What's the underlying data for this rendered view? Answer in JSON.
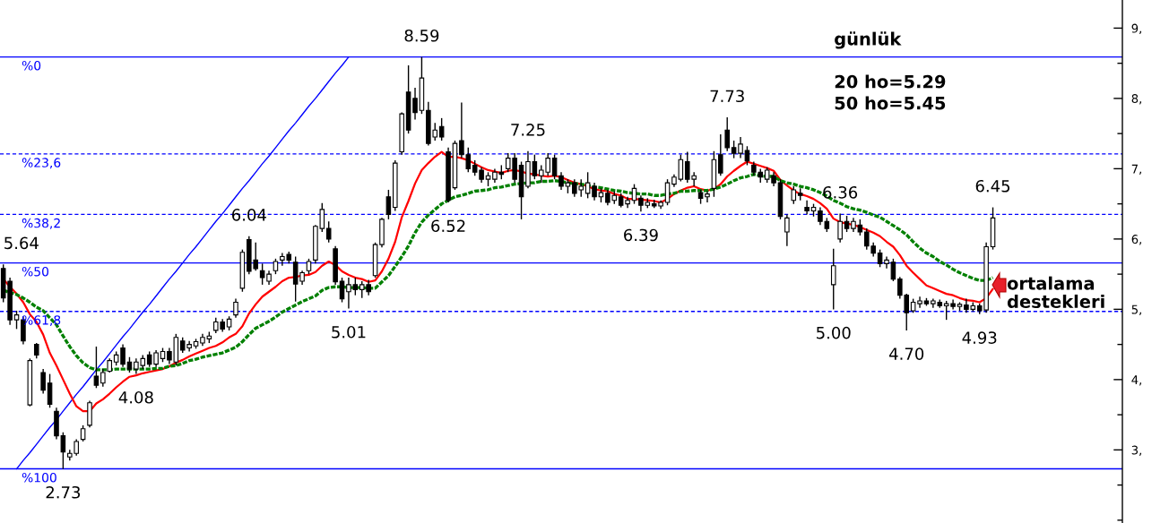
{
  "chart_data": {
    "type": "candlestick",
    "title": "günlük",
    "color": "#000000",
    "categories": [
      null,
      null,
      null,
      null,
      null,
      null,
      null,
      null,
      null,
      null,
      null,
      null,
      null,
      null,
      null,
      null,
      null,
      null,
      null,
      null,
      null,
      null,
      null,
      null,
      null,
      null,
      null,
      null,
      null,
      null,
      null,
      null,
      null,
      null,
      null,
      null,
      null,
      null,
      null,
      null,
      null,
      null,
      null,
      null,
      null,
      null,
      null,
      null,
      null,
      null,
      null,
      null,
      null,
      null,
      null,
      null,
      null,
      null,
      null,
      null,
      null,
      null,
      null,
      null,
      null,
      null,
      null,
      null,
      null,
      null,
      null,
      null,
      null,
      null,
      null,
      null,
      null,
      null,
      null,
      null,
      null,
      null,
      null,
      null,
      null,
      null,
      null,
      null,
      null,
      null,
      null,
      null,
      null,
      null,
      null,
      null,
      null,
      null,
      null,
      null,
      null,
      null,
      null,
      null,
      null,
      null,
      null,
      null,
      null,
      null,
      null,
      null,
      null,
      null,
      null,
      null,
      null,
      null,
      null,
      null,
      null,
      null,
      null,
      null,
      null,
      null,
      null,
      null,
      null,
      null,
      null,
      null,
      null,
      null,
      null,
      null,
      null,
      null,
      null,
      null,
      null,
      null,
      null,
      null,
      null,
      null,
      null,
      null,
      null,
      null,
      null,
      null,
      null,
      null,
      null,
      null,
      null,
      null,
      null,
      null,
      null,
      null,
      null,
      null,
      null,
      null,
      null,
      null,
      null
    ],
    "ohlc": [
      [
        5.58,
        5.64,
        5.1,
        5.16
      ],
      [
        5.4,
        5.45,
        4.78,
        4.85
      ],
      [
        4.85,
        4.98,
        4.72,
        4.92
      ],
      [
        4.85,
        4.9,
        4.5,
        4.55
      ],
      [
        3.64,
        4.3,
        3.62,
        4.27
      ],
      [
        4.5,
        4.52,
        4.3,
        4.35
      ],
      [
        4.1,
        4.15,
        3.8,
        3.85
      ],
      [
        3.95,
        4.08,
        3.6,
        3.65
      ],
      [
        3.55,
        3.6,
        3.15,
        3.2
      ],
      [
        3.2,
        3.25,
        2.73,
        2.97
      ],
      [
        2.9,
        3.0,
        2.85,
        2.95
      ],
      [
        2.95,
        3.15,
        2.92,
        3.12
      ],
      [
        3.15,
        3.35,
        3.12,
        3.3
      ],
      [
        3.35,
        3.7,
        3.32,
        3.67
      ],
      [
        4.05,
        4.47,
        3.88,
        3.92
      ],
      [
        3.95,
        4.15,
        3.9,
        4.1
      ],
      [
        4.12,
        4.3,
        4.1,
        4.27
      ],
      [
        4.25,
        4.4,
        4.2,
        4.35
      ],
      [
        4.45,
        4.5,
        4.18,
        4.22
      ],
      [
        4.25,
        4.32,
        4.1,
        4.15
      ],
      [
        4.15,
        4.3,
        4.08,
        4.25
      ],
      [
        4.2,
        4.35,
        4.15,
        4.3
      ],
      [
        4.35,
        4.4,
        4.18,
        4.22
      ],
      [
        4.22,
        4.42,
        4.18,
        4.38
      ],
      [
        4.3,
        4.45,
        4.25,
        4.4
      ],
      [
        4.4,
        4.45,
        4.22,
        4.28
      ],
      [
        4.25,
        4.65,
        4.2,
        4.6
      ],
      [
        4.55,
        4.6,
        4.38,
        4.42
      ],
      [
        4.45,
        4.55,
        4.4,
        4.5
      ],
      [
        4.48,
        4.58,
        4.44,
        4.54
      ],
      [
        4.52,
        4.65,
        4.48,
        4.6
      ],
      [
        4.58,
        4.68,
        4.52,
        4.62
      ],
      [
        4.7,
        4.88,
        4.66,
        4.82
      ],
      [
        4.82,
        4.86,
        4.68,
        4.72
      ],
      [
        4.75,
        4.9,
        4.7,
        4.86
      ],
      [
        4.92,
        5.15,
        4.88,
        5.1
      ],
      [
        5.3,
        5.85,
        5.25,
        5.81
      ],
      [
        5.99,
        6.04,
        5.5,
        5.54
      ],
      [
        5.7,
        5.95,
        5.55,
        5.58
      ],
      [
        5.55,
        5.65,
        5.35,
        5.45
      ],
      [
        5.4,
        5.55,
        5.35,
        5.5
      ],
      [
        5.55,
        5.72,
        5.5,
        5.68
      ],
      [
        5.7,
        5.8,
        5.62,
        5.75
      ],
      [
        5.78,
        5.82,
        5.65,
        5.7
      ],
      [
        5.67,
        5.75,
        5.11,
        5.36
      ],
      [
        5.4,
        5.55,
        5.35,
        5.52
      ],
      [
        5.55,
        5.72,
        5.5,
        5.68
      ],
      [
        5.7,
        6.2,
        5.65,
        6.18
      ],
      [
        6.15,
        6.51,
        6.1,
        6.42
      ],
      [
        6.15,
        6.25,
        5.95,
        6.0
      ],
      [
        5.86,
        5.9,
        5.35,
        5.39
      ],
      [
        5.4,
        5.45,
        5.1,
        5.15
      ],
      [
        5.25,
        5.45,
        5.01,
        5.35
      ],
      [
        5.35,
        5.45,
        5.2,
        5.28
      ],
      [
        5.28,
        5.4,
        5.16,
        5.35
      ],
      [
        5.35,
        5.42,
        5.2,
        5.25
      ],
      [
        5.48,
        5.95,
        5.45,
        5.92
      ],
      [
        5.92,
        6.3,
        5.88,
        6.28
      ],
      [
        6.6,
        6.7,
        6.28,
        6.35
      ],
      [
        6.45,
        7.12,
        6.4,
        7.08
      ],
      [
        7.24,
        7.8,
        7.2,
        7.78
      ],
      [
        8.09,
        8.47,
        7.5,
        7.55
      ],
      [
        8.0,
        8.15,
        7.7,
        7.8
      ],
      [
        7.83,
        8.59,
        7.78,
        8.29
      ],
      [
        7.83,
        7.95,
        7.33,
        7.36
      ],
      [
        7.45,
        7.65,
        7.4,
        7.55
      ],
      [
        7.6,
        7.72,
        7.4,
        7.45
      ],
      [
        7.24,
        7.3,
        6.52,
        6.55
      ],
      [
        6.73,
        7.4,
        6.7,
        7.36
      ],
      [
        7.4,
        7.94,
        7.15,
        7.2
      ],
      [
        7.2,
        7.3,
        6.95,
        7.0
      ],
      [
        7.05,
        7.12,
        6.9,
        6.95
      ],
      [
        6.98,
        7.02,
        6.8,
        6.85
      ],
      [
        6.85,
        6.95,
        6.75,
        6.9
      ],
      [
        6.85,
        7.0,
        6.8,
        6.95
      ],
      [
        6.95,
        7.05,
        6.85,
        6.92
      ],
      [
        7.0,
        7.22,
        6.95,
        7.15
      ],
      [
        7.15,
        7.22,
        6.8,
        6.85
      ],
      [
        7.05,
        7.1,
        6.28,
        6.6
      ],
      [
        6.75,
        7.25,
        6.72,
        7.1
      ],
      [
        7.1,
        7.2,
        6.85,
        6.9
      ],
      [
        6.9,
        7.05,
        6.8,
        6.98
      ],
      [
        6.95,
        7.22,
        6.9,
        7.15
      ],
      [
        7.15,
        7.2,
        6.85,
        6.9
      ],
      [
        6.9,
        6.95,
        6.7,
        6.75
      ],
      [
        6.75,
        6.85,
        6.65,
        6.8
      ],
      [
        6.8,
        6.85,
        6.6,
        6.65
      ],
      [
        6.7,
        6.85,
        6.6,
        6.75
      ],
      [
        6.65,
        6.95,
        6.58,
        6.8
      ],
      [
        6.75,
        6.8,
        6.55,
        6.6
      ],
      [
        6.6,
        6.72,
        6.52,
        6.66
      ],
      [
        6.65,
        6.7,
        6.48,
        6.52
      ],
      [
        6.55,
        6.68,
        6.5,
        6.62
      ],
      [
        6.6,
        6.65,
        6.45,
        6.48
      ],
      [
        6.5,
        6.6,
        6.44,
        6.55
      ],
      [
        6.55,
        6.78,
        6.5,
        6.72
      ],
      [
        6.58,
        6.62,
        6.39,
        6.48
      ],
      [
        6.48,
        6.58,
        6.44,
        6.52
      ],
      [
        6.5,
        6.56,
        6.44,
        6.47
      ],
      [
        6.47,
        6.55,
        6.43,
        6.52
      ],
      [
        6.52,
        6.85,
        6.48,
        6.8
      ],
      [
        6.78,
        6.92,
        6.74,
        6.88
      ],
      [
        6.85,
        7.2,
        6.82,
        7.13
      ],
      [
        7.1,
        7.24,
        6.8,
        6.85
      ],
      [
        6.85,
        6.95,
        6.75,
        6.9
      ],
      [
        6.66,
        6.7,
        6.5,
        6.58
      ],
      [
        6.6,
        6.68,
        6.52,
        6.64
      ],
      [
        6.72,
        7.25,
        6.6,
        7.13
      ],
      [
        7.2,
        7.49,
        6.9,
        6.94
      ],
      [
        7.55,
        7.73,
        7.25,
        7.3
      ],
      [
        7.3,
        7.4,
        7.15,
        7.22
      ],
      [
        7.22,
        7.45,
        7.15,
        7.35
      ],
      [
        7.26,
        7.32,
        7.05,
        7.11
      ],
      [
        7.05,
        7.1,
        6.9,
        6.95
      ],
      [
        6.95,
        7.0,
        6.8,
        6.88
      ],
      [
        6.85,
        7.02,
        6.8,
        6.98
      ],
      [
        6.9,
        6.95,
        6.75,
        6.8
      ],
      [
        6.8,
        6.85,
        6.28,
        6.32
      ],
      [
        6.1,
        6.35,
        5.9,
        6.3
      ],
      [
        6.55,
        6.75,
        6.5,
        6.7
      ],
      [
        6.65,
        6.72,
        6.55,
        6.62
      ],
      [
        6.45,
        6.55,
        6.35,
        6.4
      ],
      [
        6.4,
        6.5,
        6.32,
        6.45
      ],
      [
        6.4,
        6.45,
        6.2,
        6.25
      ],
      [
        6.25,
        6.3,
        6.1,
        6.15
      ],
      [
        5.35,
        5.86,
        5.0,
        5.62
      ],
      [
        6.0,
        6.36,
        5.95,
        6.25
      ],
      [
        6.25,
        6.33,
        6.1,
        6.15
      ],
      [
        6.15,
        6.3,
        6.1,
        6.25
      ],
      [
        6.2,
        6.28,
        6.05,
        6.1
      ],
      [
        6.1,
        6.15,
        5.85,
        5.9
      ],
      [
        5.9,
        5.95,
        5.75,
        5.8
      ],
      [
        5.8,
        5.85,
        5.6,
        5.65
      ],
      [
        5.65,
        5.75,
        5.58,
        5.7
      ],
      [
        5.67,
        5.72,
        5.4,
        5.43
      ],
      [
        5.43,
        5.46,
        5.15,
        5.2
      ],
      [
        5.2,
        5.22,
        4.7,
        4.95
      ],
      [
        4.98,
        5.15,
        4.95,
        5.1
      ],
      [
        5.08,
        5.18,
        5.02,
        5.12
      ],
      [
        5.12,
        5.16,
        5.05,
        5.08
      ],
      [
        5.08,
        5.15,
        5.02,
        5.12
      ],
      [
        5.1,
        5.14,
        5.02,
        5.05
      ],
      [
        5.05,
        5.12,
        4.85,
        5.08
      ],
      [
        5.08,
        5.14,
        5.0,
        5.04
      ],
      [
        5.04,
        5.1,
        4.98,
        5.07
      ],
      [
        5.06,
        5.15,
        4.95,
        5.0
      ],
      [
        5.0,
        5.1,
        4.97,
        5.05
      ],
      [
        5.05,
        5.08,
        4.93,
        4.98
      ],
      [
        4.99,
        5.95,
        4.95,
        5.89
      ],
      [
        5.89,
        6.45,
        5.85,
        6.3
      ],
      null,
      null,
      null,
      null,
      null,
      null,
      null,
      null,
      null,
      null,
      null,
      null,
      null,
      null,
      null,
      null,
      null,
      null,
      null
    ],
    "value_labels": [
      "5.64",
      null,
      null,
      null,
      null,
      null,
      null,
      null,
      null,
      "2.73",
      null,
      null,
      null,
      null,
      null,
      null,
      null,
      null,
      null,
      null,
      "4.08",
      null,
      null,
      null,
      null,
      null,
      null,
      null,
      null,
      null,
      null,
      null,
      null,
      null,
      null,
      null,
      null,
      "6.04",
      null,
      null,
      null,
      null,
      null,
      null,
      null,
      null,
      null,
      null,
      null,
      null,
      null,
      null,
      "5.01",
      null,
      null,
      null,
      null,
      null,
      null,
      null,
      null,
      null,
      null,
      "8.59",
      null,
      null,
      null,
      "6.52",
      null,
      null,
      null,
      null,
      null,
      null,
      null,
      null,
      null,
      null,
      null,
      "7.25",
      null,
      null,
      null,
      null,
      null,
      null,
      null,
      null,
      null,
      null,
      null,
      null,
      null,
      null,
      null,
      null,
      "6.39",
      null,
      null,
      null,
      null,
      null,
      null,
      null,
      null,
      null,
      null,
      null,
      null,
      "7.73",
      null,
      null,
      null,
      null,
      null,
      null,
      null,
      null,
      null,
      null,
      null,
      null,
      null,
      null,
      null,
      "5.00",
      "6.36",
      null,
      null,
      null,
      null,
      null,
      null,
      null,
      null,
      null,
      "4.70",
      null,
      null,
      null,
      null,
      null,
      null,
      null,
      null,
      null,
      null,
      "4.93",
      null,
      "6.45",
      null,
      null,
      null,
      null,
      null,
      null,
      null,
      null,
      null,
      null,
      null,
      null,
      null,
      null,
      null,
      null,
      null,
      null,
      null
    ],
    "series": [
      {
        "type": "line",
        "color": "#ff0000",
        "values": [
          5.43,
          5.32,
          5.22,
          5.1,
          4.93,
          4.82,
          4.64,
          4.38,
          4.2,
          4.0,
          3.8,
          3.62,
          3.55,
          3.55,
          3.66,
          3.72,
          3.8,
          3.89,
          3.97,
          4.04,
          4.06,
          4.09,
          4.11,
          4.13,
          4.15,
          4.19,
          4.24,
          4.28,
          4.33,
          4.37,
          4.41,
          4.45,
          4.48,
          4.53,
          4.6,
          4.65,
          4.76,
          4.94,
          5.07,
          5.18,
          5.25,
          5.32,
          5.4,
          5.45,
          5.46,
          5.48,
          5.49,
          5.53,
          5.62,
          5.68,
          5.63,
          5.54,
          5.49,
          5.45,
          5.43,
          5.39,
          5.41,
          5.54,
          5.72,
          5.96,
          6.31,
          6.54,
          6.79,
          6.98,
          7.08,
          7.17,
          7.24,
          7.17,
          7.17,
          7.15,
          7.12,
          7.07,
          7.02,
          6.98,
          6.96,
          6.94,
          6.97,
          6.98,
          6.96,
          6.93,
          6.92,
          6.9,
          6.89,
          6.9,
          6.88,
          6.84,
          6.8,
          6.78,
          6.75,
          6.71,
          6.69,
          6.68,
          6.64,
          6.62,
          6.57,
          6.57,
          6.56,
          6.55,
          6.54,
          6.52,
          6.57,
          6.64,
          6.69,
          6.73,
          6.75,
          6.71,
          6.69,
          6.71,
          6.78,
          6.89,
          6.97,
          7.04,
          7.1,
          7.07,
          7.04,
          7.01,
          6.97,
          6.84,
          6.76,
          6.69,
          6.64,
          6.61,
          6.57,
          6.51,
          6.43,
          6.29,
          6.24,
          6.22,
          6.2,
          6.17,
          6.13,
          6.09,
          6.04,
          5.96,
          5.89,
          5.77,
          5.62,
          5.52,
          5.43,
          5.34,
          5.3,
          5.26,
          5.22,
          5.2,
          5.16,
          5.13,
          5.12,
          5.1,
          5.16,
          5.29,
          null,
          null,
          null,
          null,
          null,
          null,
          null,
          null,
          null,
          null,
          null,
          null,
          null,
          null,
          null,
          null,
          null,
          null,
          null
        ]
      },
      {
        "type": "line",
        "color": "#008000",
        "line_style": "dotted",
        "values": [
          5.27,
          5.24,
          5.21,
          5.16,
          5.1,
          5.03,
          4.98,
          4.88,
          4.78,
          4.62,
          4.47,
          4.34,
          4.24,
          4.17,
          4.14,
          4.14,
          4.14,
          4.15,
          4.15,
          4.15,
          4.15,
          4.15,
          4.15,
          4.16,
          4.16,
          4.19,
          4.2,
          4.23,
          4.27,
          4.29,
          4.32,
          4.34,
          4.36,
          4.38,
          4.42,
          4.46,
          4.54,
          4.64,
          4.73,
          4.78,
          4.83,
          4.89,
          4.96,
          5.01,
          5.06,
          5.11,
          5.15,
          5.19,
          5.27,
          5.31,
          5.32,
          5.32,
          5.31,
          5.31,
          5.31,
          5.3,
          5.3,
          5.39,
          5.48,
          5.61,
          5.75,
          5.9,
          6.09,
          6.24,
          6.34,
          6.42,
          6.5,
          6.55,
          6.6,
          6.62,
          6.65,
          6.68,
          6.69,
          6.7,
          6.73,
          6.74,
          6.76,
          6.78,
          6.79,
          6.8,
          6.8,
          6.82,
          6.82,
          6.83,
          6.82,
          6.8,
          6.79,
          6.78,
          6.76,
          6.74,
          6.73,
          6.71,
          6.69,
          6.68,
          6.66,
          6.65,
          6.64,
          6.64,
          6.62,
          6.62,
          6.64,
          6.65,
          6.68,
          6.68,
          6.69,
          6.69,
          6.69,
          6.71,
          6.74,
          6.78,
          6.83,
          6.87,
          6.89,
          6.92,
          6.9,
          6.89,
          6.89,
          6.83,
          6.8,
          6.78,
          6.75,
          6.73,
          6.7,
          6.66,
          6.61,
          6.55,
          6.51,
          6.46,
          6.43,
          6.41,
          6.38,
          6.34,
          6.31,
          6.25,
          6.19,
          6.13,
          6.06,
          5.96,
          5.87,
          5.8,
          5.75,
          5.68,
          5.63,
          5.57,
          5.52,
          5.48,
          5.44,
          5.41,
          5.41,
          5.45,
          null,
          null,
          null,
          null,
          null,
          null,
          null,
          null,
          null,
          null,
          null,
          null,
          null,
          null,
          null,
          null,
          null,
          null,
          null
        ]
      },
      {
        "type": "line",
        "color": "#0000ff",
        "values": [
          null,
          null,
          2.73,
          2.85,
          2.96,
          3.08,
          3.2,
          3.32,
          3.43,
          3.55,
          3.67,
          3.79,
          3.9,
          4.02,
          4.14,
          4.25,
          4.37,
          4.49,
          4.61,
          4.72,
          4.84,
          4.96,
          5.07,
          5.19,
          5.31,
          5.43,
          5.54,
          5.66,
          5.78,
          5.89,
          6.01,
          6.13,
          6.25,
          6.36,
          6.48,
          6.6,
          6.72,
          6.83,
          6.95,
          7.07,
          7.18,
          7.3,
          7.42,
          7.54,
          7.65,
          7.77,
          7.89,
          8.0,
          8.12,
          8.24,
          8.36,
          8.47,
          8.59,
          null,
          null,
          null,
          null,
          null,
          null,
          null,
          null,
          null,
          null,
          null,
          null,
          null,
          null,
          null,
          null,
          null,
          null,
          null,
          null,
          null,
          null,
          null,
          null,
          null,
          null,
          null,
          null,
          null,
          null,
          null,
          null,
          null,
          null,
          null,
          null,
          null,
          null,
          null,
          null,
          null,
          null,
          null,
          null,
          null,
          null,
          null,
          null,
          null,
          null,
          null,
          null,
          null,
          null,
          null,
          null,
          null,
          null,
          null,
          null,
          null,
          null,
          null,
          null,
          null,
          null,
          null,
          null,
          null,
          null,
          null,
          null,
          null,
          null,
          null,
          null,
          null,
          null,
          null,
          null,
          null,
          null,
          null,
          null,
          null,
          null,
          null,
          null,
          null,
          null,
          null,
          null,
          null,
          null,
          null,
          null,
          null,
          null,
          null,
          null,
          null,
          null,
          null,
          null,
          null,
          null,
          null,
          null,
          null,
          null,
          null,
          null,
          null,
          null,
          null,
          null
        ]
      }
    ],
    "ylim": [
      1.96,
      9.4
    ],
    "yticks": [
      {
        "value": 2,
        "label": null
      },
      {
        "value": 2.5,
        "label": null
      },
      {
        "value": 3,
        "label": "3,"
      },
      {
        "value": 3.5,
        "label": null
      },
      {
        "value": 4,
        "label": "4,"
      },
      {
        "value": 4.5,
        "label": null
      },
      {
        "value": 5,
        "label": "5,"
      },
      {
        "value": 5.5,
        "label": null
      },
      {
        "value": 6,
        "label": "6,"
      },
      {
        "value": 6.5,
        "label": null
      },
      {
        "value": 7,
        "label": "7,"
      },
      {
        "value": 7.5,
        "label": null
      },
      {
        "value": 8,
        "label": "8,"
      },
      {
        "value": 8.5,
        "label": null
      },
      {
        "value": 9,
        "label": "9,"
      }
    ],
    "tick_labels": "y",
    "ref_lines": [
      {
        "axis": "y",
        "value": 8.59,
        "color": "#0000ff",
        "line_style": "solid"
      },
      {
        "axis": "y",
        "value": 7.21,
        "color": "#0000ff",
        "line_style": "dashed"
      },
      {
        "axis": "y",
        "value": 6.35,
        "color": "#0000ff",
        "line_style": "dashed"
      },
      {
        "axis": "y",
        "value": 5.66,
        "color": "#0000ff",
        "line_style": "solid"
      },
      {
        "axis": "y",
        "value": 4.97,
        "color": "#0000ff",
        "line_style": "dashed"
      },
      {
        "axis": "y",
        "value": 2.73,
        "color": "#0000ff",
        "line_style": "solid"
      }
    ],
    "annotations": [
      {
        "text": "%0",
        "y": 8.59
      },
      {
        "text": "%23,6",
        "y": 7.21
      },
      {
        "text": "%38,2",
        "y": 6.35
      },
      {
        "text": "%50",
        "y": 5.66
      },
      {
        "text": "%61,8",
        "y": 4.97
      },
      {
        "text": "%100",
        "y": 2.73
      },
      "20 ho=5.29",
      "50 ho=5.45",
      "ortalama\ndestekleri"
    ]
  }
}
